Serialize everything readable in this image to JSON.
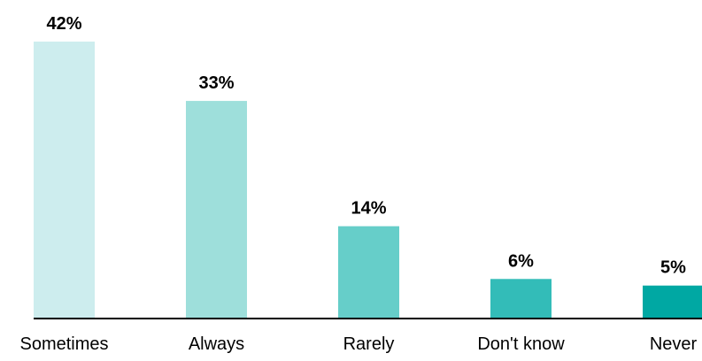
{
  "chart_data": {
    "type": "bar",
    "title": "",
    "xlabel": "",
    "ylabel": "",
    "categories": [
      "Sometimes",
      "Always",
      "Rarely",
      "Don't know",
      "Never"
    ],
    "values": [
      42,
      33,
      14,
      6,
      5
    ],
    "value_labels": [
      "42%",
      "33%",
      "14%",
      "6%",
      "5%"
    ],
    "ylim": [
      0,
      42
    ],
    "grid": false,
    "legend": "none",
    "colors": [
      "#CDEDEE",
      "#9EDFDB",
      "#66CEC9",
      "#33BCB8",
      "#00A8A3"
    ],
    "axis_color": "#000000"
  }
}
